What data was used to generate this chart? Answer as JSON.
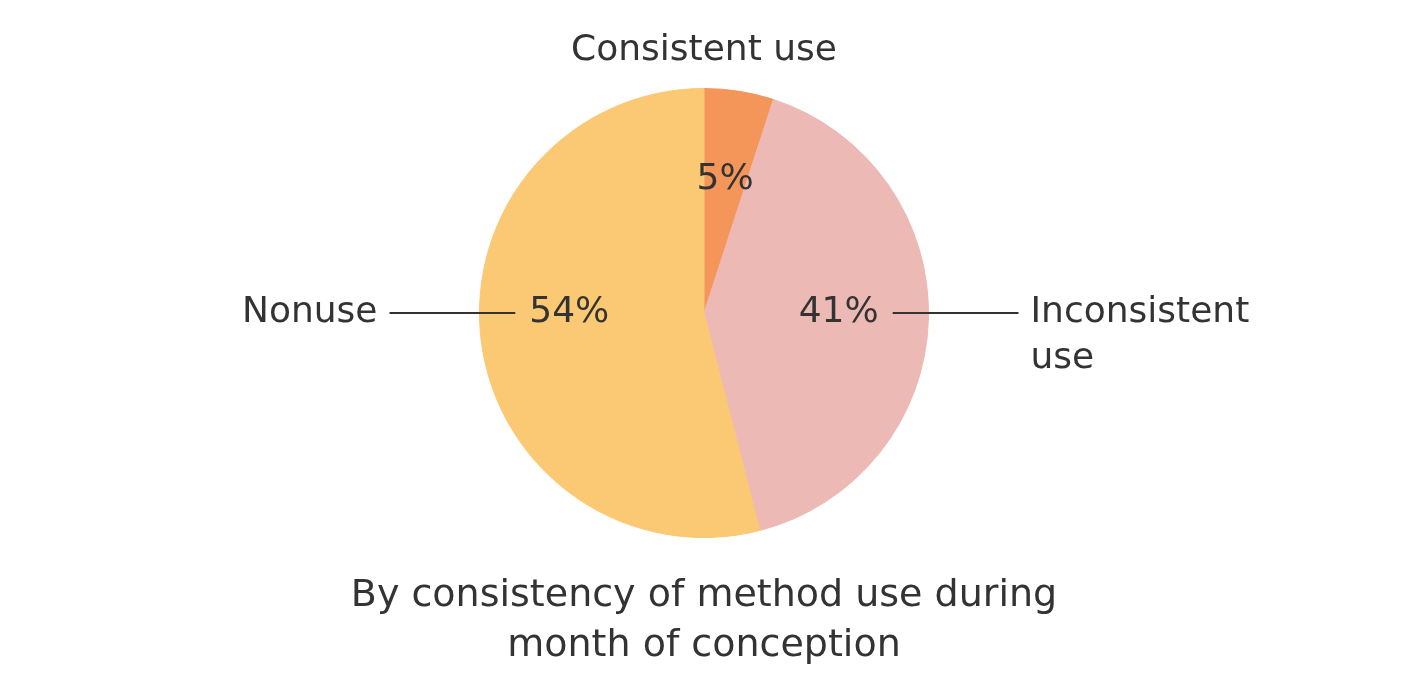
{
  "chart_data": {
    "type": "pie",
    "title": "By consistency of method use during month of conception",
    "categories": [
      "Consistent use",
      "Inconsistent use",
      "Nonuse"
    ],
    "values": [
      5,
      41,
      54
    ],
    "value_labels": [
      "5%",
      "41%",
      "54%"
    ],
    "colors": [
      "#f4955a",
      "#ecb9b5",
      "#fbc874"
    ],
    "legend": false
  }
}
